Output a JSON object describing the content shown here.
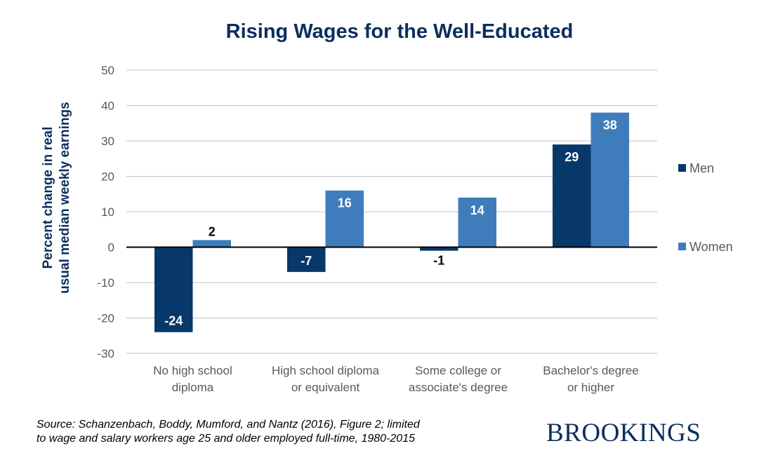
{
  "chart_data": {
    "type": "bar",
    "title": "Rising Wages for the Well-Educated",
    "ylabel": [
      "Percent change in real",
      "usual median weekly earnings"
    ],
    "xlabel": "",
    "categories": [
      [
        "No high school",
        "diploma"
      ],
      [
        "High school diploma",
        "or equivalent"
      ],
      [
        "Some college or",
        "associate's degree"
      ],
      [
        "Bachelor's degree",
        "or higher"
      ]
    ],
    "series": [
      {
        "name": "Men",
        "values": [
          -24,
          -7,
          -1,
          29
        ],
        "color": "#08386a"
      },
      {
        "name": "Women",
        "values": [
          2,
          16,
          14,
          38
        ],
        "color": "#3f7cbc"
      }
    ],
    "ylim": [
      -30,
      50
    ],
    "yticks": [
      50,
      40,
      30,
      20,
      10,
      0,
      -10,
      -20,
      -30
    ],
    "grid": true,
    "legend": "right"
  },
  "source": [
    "Source: Schanzenbach, Boddy, Mumford, and Nantz (2016), Figure 2; limited",
    "to wage and salary workers age 25 and older employed full-time, 1980-2015"
  ],
  "logo": "BROOKINGS"
}
